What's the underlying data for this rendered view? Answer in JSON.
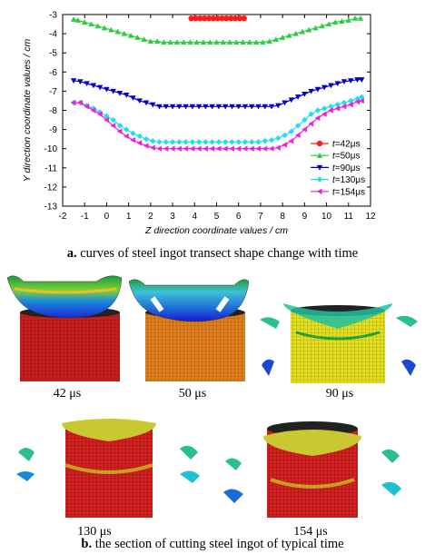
{
  "chart_data": {
    "type": "line",
    "xlabel": "Z direction coordinate values / cm",
    "ylabel": "Y direction coordinate values / cm",
    "xlim": [
      -2,
      12
    ],
    "ylim": [
      -13,
      -3
    ],
    "xticks": [
      "-2",
      "-1",
      "0",
      "1",
      "2",
      "3",
      "4",
      "5",
      "6",
      "7",
      "8",
      "9",
      "10",
      "11",
      "12"
    ],
    "yticks": [
      "-3",
      "-4",
      "-5",
      "-6",
      "-7",
      "-8",
      "-9",
      "-10",
      "-11",
      "-12",
      "-13"
    ],
    "grid": false,
    "legend_position": "right",
    "series": [
      {
        "name_prefix": "t",
        "name_value": "=42μs",
        "color": "#ff1a1a",
        "marker": "circle",
        "x": [
          3.85,
          4.05,
          4.25,
          4.45,
          4.65,
          4.85,
          5.05,
          5.25,
          5.45,
          5.65,
          5.85,
          6.05,
          6.25
        ],
        "y": [
          -3.2,
          -3.2,
          -3.2,
          -3.2,
          -3.2,
          -3.2,
          -3.2,
          -3.2,
          -3.2,
          -3.2,
          -3.2,
          -3.2,
          -3.2
        ]
      },
      {
        "name_prefix": "t",
        "name_value": "=50μs",
        "color": "#2ecc40",
        "marker": "triangle-up",
        "x": [
          -1.5,
          -1.3,
          -1.0,
          -0.7,
          -0.4,
          -0.1,
          0.2,
          0.5,
          0.8,
          1.1,
          1.4,
          1.7,
          2.0,
          2.3,
          2.6,
          2.9,
          3.2,
          3.5,
          3.8,
          4.1,
          4.4,
          4.7,
          5.0,
          5.3,
          5.6,
          5.9,
          6.2,
          6.5,
          6.8,
          7.1,
          7.4,
          7.7,
          8.0,
          8.3,
          8.6,
          8.9,
          9.2,
          9.5,
          9.8,
          10.1,
          10.4,
          10.7,
          11.0,
          11.3,
          11.55
        ],
        "y": [
          -3.25,
          -3.3,
          -3.4,
          -3.5,
          -3.6,
          -3.7,
          -3.8,
          -3.9,
          -4.0,
          -4.1,
          -4.2,
          -4.3,
          -4.4,
          -4.4,
          -4.45,
          -4.45,
          -4.45,
          -4.45,
          -4.45,
          -4.45,
          -4.45,
          -4.45,
          -4.45,
          -4.45,
          -4.45,
          -4.45,
          -4.45,
          -4.45,
          -4.45,
          -4.45,
          -4.4,
          -4.3,
          -4.2,
          -4.1,
          -4.0,
          -3.9,
          -3.8,
          -3.7,
          -3.6,
          -3.5,
          -3.4,
          -3.35,
          -3.3,
          -3.2,
          -3.2
        ]
      },
      {
        "name_prefix": "t",
        "name_value": "=90μs",
        "color": "#0000cc",
        "marker": "triangle-down",
        "x": [
          -1.5,
          -1.2,
          -0.9,
          -0.6,
          -0.3,
          0.0,
          0.3,
          0.6,
          0.9,
          1.2,
          1.5,
          1.8,
          2.1,
          2.4,
          2.7,
          3.0,
          3.3,
          3.6,
          3.9,
          4.2,
          4.5,
          4.8,
          5.1,
          5.4,
          5.7,
          6.0,
          6.3,
          6.6,
          6.9,
          7.2,
          7.5,
          7.8,
          8.1,
          8.4,
          8.7,
          9.0,
          9.3,
          9.6,
          9.9,
          10.2,
          10.5,
          10.8,
          11.1,
          11.4,
          11.6
        ],
        "y": [
          -6.45,
          -6.5,
          -6.6,
          -6.7,
          -6.8,
          -6.9,
          -7.0,
          -7.1,
          -7.2,
          -7.35,
          -7.5,
          -7.6,
          -7.7,
          -7.8,
          -7.8,
          -7.8,
          -7.8,
          -7.8,
          -7.8,
          -7.8,
          -7.8,
          -7.8,
          -7.8,
          -7.8,
          -7.8,
          -7.8,
          -7.8,
          -7.8,
          -7.8,
          -7.8,
          -7.8,
          -7.75,
          -7.6,
          -7.45,
          -7.3,
          -7.15,
          -7.0,
          -6.9,
          -6.8,
          -6.7,
          -6.6,
          -6.5,
          -6.45,
          -6.4,
          -6.4
        ]
      },
      {
        "name_prefix": "t",
        "name_value": "=130μs",
        "color": "#22ddee",
        "marker": "diamond",
        "x": [
          -1.5,
          -1.2,
          -0.9,
          -0.6,
          -0.3,
          0.0,
          0.3,
          0.6,
          0.9,
          1.2,
          1.5,
          1.8,
          2.1,
          2.4,
          2.7,
          3.0,
          3.3,
          3.6,
          3.9,
          4.2,
          4.5,
          4.8,
          5.1,
          5.4,
          5.7,
          6.0,
          6.3,
          6.6,
          6.9,
          7.2,
          7.5,
          7.8,
          8.1,
          8.4,
          8.7,
          9.0,
          9.3,
          9.6,
          9.9,
          10.2,
          10.5,
          10.8,
          11.1,
          11.4,
          11.6
        ],
        "y": [
          -7.6,
          -7.6,
          -7.75,
          -7.9,
          -8.1,
          -8.3,
          -8.5,
          -8.8,
          -9.0,
          -9.2,
          -9.35,
          -9.5,
          -9.6,
          -9.65,
          -9.65,
          -9.65,
          -9.65,
          -9.65,
          -9.65,
          -9.65,
          -9.65,
          -9.65,
          -9.65,
          -9.65,
          -9.65,
          -9.65,
          -9.65,
          -9.65,
          -9.65,
          -9.6,
          -9.55,
          -9.45,
          -9.3,
          -9.1,
          -8.8,
          -8.5,
          -8.2,
          -8.0,
          -7.9,
          -7.8,
          -7.7,
          -7.6,
          -7.5,
          -7.4,
          -7.3
        ]
      },
      {
        "name_prefix": "t",
        "name_value": "=154μs",
        "color": "#ee22dd",
        "marker": "triangle-left",
        "x": [
          -1.5,
          -1.2,
          -0.9,
          -0.6,
          -0.3,
          0.0,
          0.3,
          0.6,
          0.9,
          1.2,
          1.5,
          1.8,
          2.1,
          2.4,
          2.7,
          3.0,
          3.3,
          3.6,
          3.9,
          4.2,
          4.5,
          4.8,
          5.1,
          5.4,
          5.7,
          6.0,
          6.3,
          6.6,
          6.9,
          7.2,
          7.5,
          7.8,
          8.1,
          8.4,
          8.7,
          9.0,
          9.3,
          9.6,
          9.9,
          10.2,
          10.5,
          10.8,
          11.1,
          11.4,
          11.6
        ],
        "y": [
          -7.6,
          -7.6,
          -7.8,
          -8.0,
          -8.2,
          -8.5,
          -8.8,
          -9.1,
          -9.35,
          -9.55,
          -9.7,
          -9.85,
          -9.95,
          -10.0,
          -10.0,
          -10.0,
          -10.0,
          -10.0,
          -10.0,
          -10.0,
          -10.0,
          -10.0,
          -10.0,
          -10.0,
          -10.0,
          -10.0,
          -10.0,
          -10.0,
          -10.0,
          -10.0,
          -10.0,
          -9.95,
          -9.8,
          -9.6,
          -9.3,
          -9.0,
          -8.7,
          -8.4,
          -8.2,
          -8.0,
          -7.9,
          -7.8,
          -7.7,
          -7.55,
          -7.5
        ]
      }
    ]
  },
  "captions": {
    "a_letter": "a.",
    "a_text": " curves of steel ingot transect shape change with time",
    "b_letter": "b.",
    "b_text": " the section of cutting steel ingot of typical time"
  },
  "snapshots": [
    {
      "label": "42 μs",
      "color_body": "#c8201c"
    },
    {
      "label": "50 μs",
      "color_body": "#e07e1e"
    },
    {
      "label": "90 μs",
      "color_body": "#e8e81e"
    },
    {
      "label": "130 μs",
      "color_body": "#d42020"
    },
    {
      "label": "154 μs",
      "color_body": "#d42020"
    }
  ]
}
